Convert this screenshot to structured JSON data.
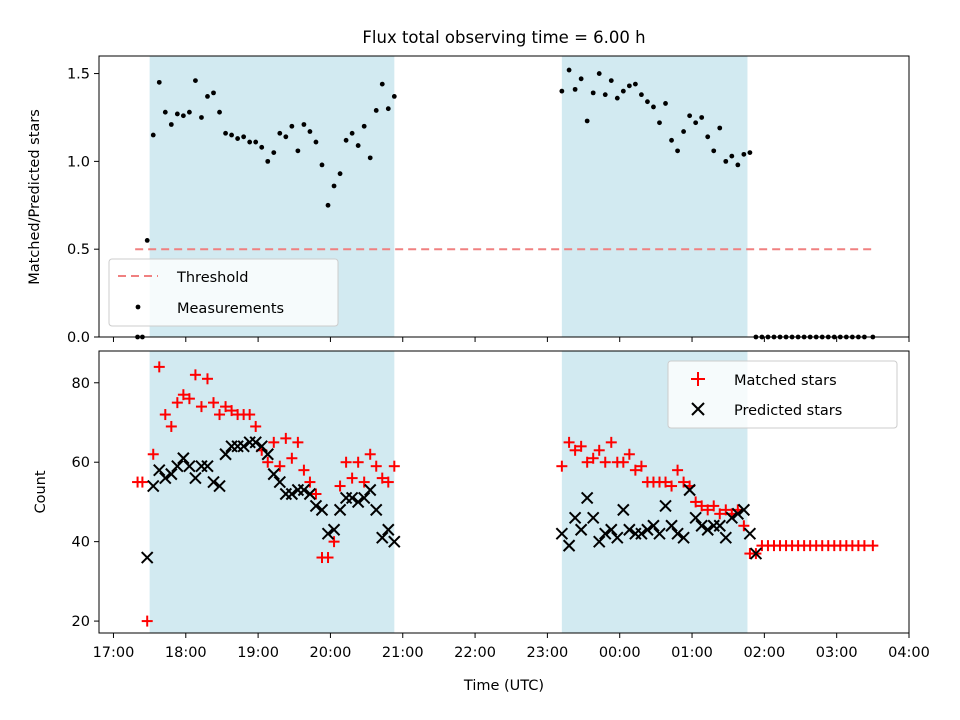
{
  "title": "Flux total observing time = 6.00 h",
  "colors": {
    "shade": "#add8e6",
    "threshold": "#f08080",
    "matched": "#ff0000",
    "predicted": "#000000",
    "measurement": "#000000"
  },
  "chart_data": [
    {
      "type": "scatter",
      "ylabel": "Matched/Predicted stars",
      "ylim": [
        0,
        1.6
      ],
      "yticks": [
        0.0,
        0.5,
        1.0,
        1.5
      ],
      "ytick_labels": [
        "0.0",
        "0.5",
        "1.0",
        "1.5"
      ],
      "legend": "lower-left",
      "legend_entries": [
        "Threshold",
        "Measurements"
      ],
      "threshold": {
        "name": "Threshold",
        "y": 0.5,
        "x_range": [
          "17:18",
          "03:30"
        ]
      },
      "shaded_ranges": [
        [
          "17:30",
          "20:53"
        ],
        [
          "23:12",
          "01:46"
        ]
      ],
      "series": [
        {
          "name": "Measurements",
          "x": [
            "17:20",
            "17:24",
            "17:28",
            "17:33",
            "17:38",
            "17:43",
            "17:48",
            "17:53",
            "17:58",
            "18:03",
            "18:08",
            "18:13",
            "18:18",
            "18:23",
            "18:28",
            "18:33",
            "18:38",
            "18:43",
            "18:48",
            "18:53",
            "18:58",
            "19:03",
            "19:08",
            "19:13",
            "19:18",
            "19:23",
            "19:28",
            "19:33",
            "19:38",
            "19:43",
            "19:48",
            "19:53",
            "19:58",
            "20:03",
            "20:08",
            "20:13",
            "20:18",
            "20:23",
            "20:28",
            "20:33",
            "20:38",
            "20:43",
            "20:48",
            "20:53",
            "23:12",
            "23:18",
            "23:23",
            "23:28",
            "23:33",
            "23:38",
            "23:43",
            "23:48",
            "23:53",
            "23:58",
            "00:03",
            "00:08",
            "00:13",
            "00:18",
            "00:23",
            "00:28",
            "00:33",
            "00:38",
            "00:43",
            "00:48",
            "00:53",
            "00:58",
            "01:03",
            "01:08",
            "01:13",
            "01:18",
            "01:23",
            "01:28",
            "01:33",
            "01:38",
            "01:43",
            "01:48",
            "01:53",
            "01:58",
            "02:03",
            "02:08",
            "02:13",
            "02:18",
            "02:23",
            "02:28",
            "02:33",
            "02:38",
            "02:43",
            "02:48",
            "02:53",
            "02:58",
            "03:03",
            "03:08",
            "03:13",
            "03:18",
            "03:23",
            "03:30"
          ],
          "y": [
            0.0,
            0.0,
            0.55,
            1.15,
            1.45,
            1.28,
            1.21,
            1.27,
            1.26,
            1.28,
            1.46,
            1.25,
            1.37,
            1.39,
            1.28,
            1.16,
            1.15,
            1.13,
            1.14,
            1.11,
            1.11,
            1.08,
            1.0,
            1.05,
            1.16,
            1.14,
            1.2,
            1.06,
            1.21,
            1.17,
            1.11,
            0.98,
            0.75,
            0.86,
            0.93,
            1.12,
            1.16,
            1.09,
            1.2,
            1.02,
            1.29,
            1.44,
            1.3,
            1.37,
            1.4,
            1.52,
            1.41,
            1.47,
            1.23,
            1.39,
            1.5,
            1.38,
            1.46,
            1.36,
            1.4,
            1.43,
            1.44,
            1.38,
            1.34,
            1.31,
            1.22,
            1.33,
            1.12,
            1.06,
            1.17,
            1.26,
            1.22,
            1.25,
            1.14,
            1.06,
            1.19,
            1.0,
            1.03,
            0.98,
            1.04,
            1.05,
            0.0,
            0.0,
            0.0,
            0.0,
            0.0,
            0.0,
            0.0,
            0.0,
            0.0,
            0.0,
            0.0,
            0.0,
            0.0,
            0.0,
            0.0,
            0.0,
            0.0,
            0.0,
            0.0,
            0.0
          ]
        }
      ]
    },
    {
      "type": "scatter",
      "xlabel": "Time (UTC)",
      "ylabel": "Count",
      "ylim": [
        17,
        88
      ],
      "yticks": [
        20,
        40,
        60,
        80
      ],
      "xlim": [
        "16:48",
        "04:00"
      ],
      "xticks": [
        "17:00",
        "18:00",
        "19:00",
        "20:00",
        "21:00",
        "22:00",
        "23:00",
        "00:00",
        "01:00",
        "02:00",
        "03:00",
        "04:00"
      ],
      "legend": "top-right",
      "legend_entries": [
        "Matched stars",
        "Predicted stars"
      ],
      "shaded_ranges": [
        [
          "17:30",
          "20:53"
        ],
        [
          "23:12",
          "01:46"
        ]
      ],
      "series": [
        {
          "name": "Matched stars",
          "marker": "plus",
          "x": [
            "17:20",
            "17:24",
            "17:28",
            "17:33",
            "17:38",
            "17:43",
            "17:48",
            "17:53",
            "17:58",
            "18:03",
            "18:08",
            "18:13",
            "18:18",
            "18:23",
            "18:28",
            "18:33",
            "18:38",
            "18:43",
            "18:48",
            "18:53",
            "18:58",
            "19:03",
            "19:08",
            "19:13",
            "19:18",
            "19:23",
            "19:28",
            "19:33",
            "19:38",
            "19:43",
            "19:48",
            "19:53",
            "19:58",
            "20:03",
            "20:08",
            "20:13",
            "20:18",
            "20:23",
            "20:28",
            "20:33",
            "20:38",
            "20:43",
            "20:48",
            "20:53",
            "23:12",
            "23:18",
            "23:23",
            "23:28",
            "23:33",
            "23:38",
            "23:43",
            "23:48",
            "23:53",
            "23:58",
            "00:03",
            "00:08",
            "00:13",
            "00:18",
            "00:23",
            "00:28",
            "00:33",
            "00:38",
            "00:43",
            "00:48",
            "00:53",
            "00:58",
            "01:03",
            "01:08",
            "01:13",
            "01:18",
            "01:23",
            "01:28",
            "01:33",
            "01:38",
            "01:43",
            "01:48",
            "01:53",
            "01:58",
            "02:03",
            "02:08",
            "02:13",
            "02:18",
            "02:23",
            "02:28",
            "02:33",
            "02:38",
            "02:43",
            "02:48",
            "02:53",
            "02:58",
            "03:03",
            "03:08",
            "03:13",
            "03:18",
            "03:23",
            "03:30"
          ],
          "y": [
            55,
            55,
            20,
            62,
            84,
            72,
            69,
            75,
            77,
            76,
            82,
            74,
            81,
            75,
            72,
            74,
            73,
            72,
            72,
            72,
            69,
            63,
            60,
            65,
            59,
            66,
            61,
            65,
            58,
            55,
            52,
            36,
            36,
            40,
            54,
            60,
            56,
            60,
            55,
            62,
            59,
            56,
            55,
            59,
            59,
            65,
            63,
            64,
            60,
            61,
            63,
            60,
            65,
            60,
            60,
            62,
            58,
            59,
            55,
            55,
            55,
            55,
            54,
            58,
            55,
            54,
            50,
            49,
            48,
            49,
            47,
            48,
            47,
            48,
            44,
            37,
            37,
            39,
            39,
            39,
            39,
            39,
            39,
            39,
            39,
            39,
            39,
            39,
            39,
            39,
            39,
            39,
            39,
            39,
            39,
            39
          ]
        },
        {
          "name": "Predicted stars",
          "marker": "x",
          "x": [
            "17:28",
            "17:33",
            "17:38",
            "17:43",
            "17:48",
            "17:53",
            "17:58",
            "18:03",
            "18:08",
            "18:13",
            "18:18",
            "18:23",
            "18:28",
            "18:33",
            "18:38",
            "18:43",
            "18:48",
            "18:53",
            "18:58",
            "19:03",
            "19:08",
            "19:13",
            "19:18",
            "19:23",
            "19:28",
            "19:33",
            "19:38",
            "19:43",
            "19:48",
            "19:53",
            "19:58",
            "20:03",
            "20:08",
            "20:13",
            "20:18",
            "20:23",
            "20:28",
            "20:33",
            "20:38",
            "20:43",
            "20:48",
            "20:53",
            "23:12",
            "23:18",
            "23:23",
            "23:28",
            "23:33",
            "23:38",
            "23:43",
            "23:48",
            "23:53",
            "23:58",
            "00:03",
            "00:08",
            "00:13",
            "00:18",
            "00:23",
            "00:28",
            "00:33",
            "00:38",
            "00:43",
            "00:48",
            "00:53",
            "00:58",
            "01:03",
            "01:08",
            "01:13",
            "01:18",
            "01:23",
            "01:28",
            "01:33",
            "01:38",
            "01:43",
            "01:48",
            "01:53"
          ],
          "y": [
            36,
            54,
            58,
            56,
            57,
            59,
            61,
            59,
            56,
            59,
            59,
            55,
            54,
            62,
            64,
            64,
            64,
            65,
            65,
            64,
            62,
            57,
            55,
            52,
            52,
            53,
            53,
            52,
            49,
            48,
            42,
            43,
            48,
            51,
            51,
            50,
            51,
            53,
            48,
            41,
            43,
            40,
            42,
            39,
            46,
            43,
            51,
            46,
            40,
            42,
            43,
            41,
            48,
            43,
            42,
            42,
            43,
            44,
            42,
            49,
            44,
            42,
            41,
            53,
            46,
            44,
            43,
            44,
            44,
            41,
            46,
            47,
            48,
            42,
            37
          ]
        }
      ]
    }
  ]
}
